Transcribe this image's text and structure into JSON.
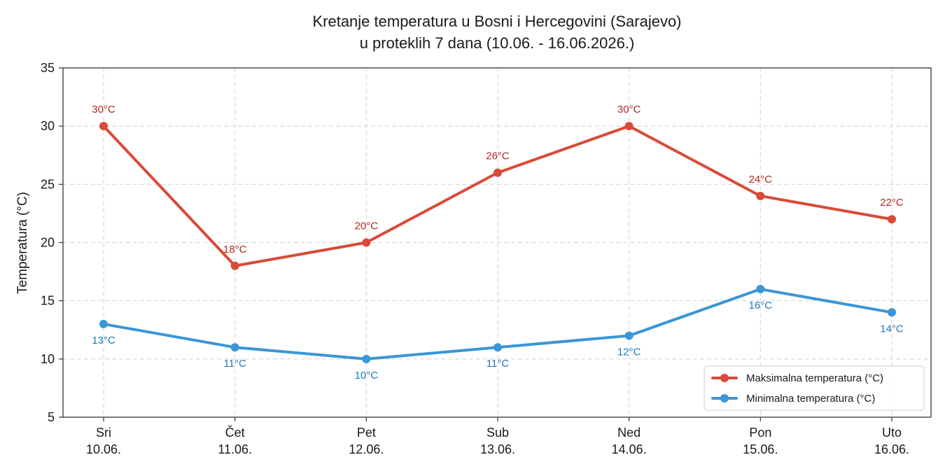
{
  "chart_data": {
    "type": "line",
    "title_line1": "Kretanje temperatura u Bosni i Hercegovini (Sarajevo)",
    "title_line2": "u proteklih 7 dana (10.06. - 16.06.2026.)",
    "ylabel": "Temperatura (°C)",
    "xlabel": "",
    "ylim": [
      5,
      35
    ],
    "yticks": [
      5,
      10,
      15,
      20,
      25,
      30,
      35
    ],
    "grid": true,
    "legend_position": "lower-right",
    "categories": [
      {
        "day": "Sri",
        "date": "10.06."
      },
      {
        "day": "Čet",
        "date": "11.06."
      },
      {
        "day": "Pet",
        "date": "12.06."
      },
      {
        "day": "Sub",
        "date": "13.06."
      },
      {
        "day": "Ned",
        "date": "14.06."
      },
      {
        "day": "Pon",
        "date": "15.06."
      },
      {
        "day": "Uto",
        "date": "16.06."
      }
    ],
    "series": [
      {
        "name": "Maksimalna temperatura (°C)",
        "color": "#d94a38",
        "label_color": "#b3261e",
        "values": [
          30,
          18,
          20,
          26,
          30,
          24,
          22
        ],
        "labels": [
          "30°C",
          "18°C",
          "20°C",
          "26°C",
          "30°C",
          "24°C",
          "22°C"
        ],
        "label_side": "above"
      },
      {
        "name": "Minimalna temperatura (°C)",
        "color": "#3a96d6",
        "label_color": "#1f78b4",
        "values": [
          13,
          11,
          10,
          11,
          12,
          16,
          14
        ],
        "labels": [
          "13°C",
          "11°C",
          "10°C",
          "11°C",
          "12°C",
          "16°C",
          "14°C"
        ],
        "label_side": "below"
      }
    ]
  }
}
